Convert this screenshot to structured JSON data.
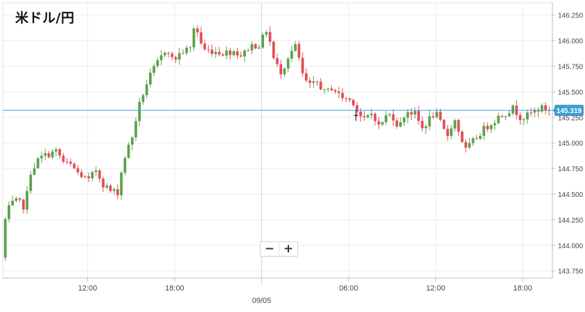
{
  "chart_data": {
    "type": "candlestick",
    "title": "米ドル/円",
    "current_price": 145.319,
    "current_price_label": "145.319",
    "ylim": [
      143.68,
      146.37
    ],
    "y_ticks": [
      "146.250",
      "146.000",
      "145.750",
      "145.500",
      "145.250",
      "145.000",
      "144.750",
      "144.500",
      "144.250",
      "144.000",
      "143.750"
    ],
    "x_ticks": [
      {
        "label": "12:00",
        "hour": 12
      },
      {
        "label": "18:00",
        "hour": 18
      },
      {
        "label": "",
        "hour": 24,
        "sublabel": "09/05"
      },
      {
        "label": "06:00",
        "hour": 30
      },
      {
        "label": "12:00",
        "hour": 36
      },
      {
        "label": "18:00",
        "hour": 42
      }
    ],
    "x_range_hours": [
      6.15,
      44.05
    ],
    "bar_minutes": 15,
    "colors": {
      "up": "#5aa34a",
      "down": "#e04f56",
      "price_line": "#3d9fd6",
      "grid": "#ececec",
      "axis": "#bdbdbd"
    },
    "anchors": [
      [
        6.2,
        143.88
      ],
      [
        6.45,
        144.25
      ],
      [
        6.8,
        144.4
      ],
      [
        7.3,
        144.43
      ],
      [
        7.8,
        144.37
      ],
      [
        8.2,
        144.72
      ],
      [
        8.8,
        144.85
      ],
      [
        9.4,
        144.89
      ],
      [
        10.0,
        144.92
      ],
      [
        10.5,
        144.8
      ],
      [
        11.0,
        144.78
      ],
      [
        11.5,
        144.7
      ],
      [
        12.2,
        144.63
      ],
      [
        12.7,
        144.74
      ],
      [
        13.2,
        144.6
      ],
      [
        13.7,
        144.53
      ],
      [
        14.2,
        144.52
      ],
      [
        14.6,
        144.83
      ],
      [
        15.2,
        145.06
      ],
      [
        15.6,
        145.33
      ],
      [
        16.1,
        145.55
      ],
      [
        16.6,
        145.7
      ],
      [
        17.2,
        145.84
      ],
      [
        17.6,
        145.94
      ],
      [
        18.0,
        145.8
      ],
      [
        18.6,
        145.89
      ],
      [
        19.2,
        145.92
      ],
      [
        19.5,
        146.17
      ],
      [
        20.1,
        145.91
      ],
      [
        20.8,
        145.9
      ],
      [
        21.5,
        145.88
      ],
      [
        22.2,
        145.9
      ],
      [
        22.8,
        145.85
      ],
      [
        23.3,
        145.95
      ],
      [
        24.0,
        145.96
      ],
      [
        24.5,
        146.12
      ],
      [
        25.0,
        145.79
      ],
      [
        25.5,
        145.69
      ],
      [
        26.0,
        145.86
      ],
      [
        26.5,
        145.95
      ],
      [
        27.0,
        145.63
      ],
      [
        27.5,
        145.55
      ],
      [
        28.0,
        145.6
      ],
      [
        28.5,
        145.48
      ],
      [
        29.0,
        145.55
      ],
      [
        29.5,
        145.46
      ],
      [
        30.0,
        145.43
      ],
      [
        30.5,
        145.4
      ],
      [
        30.8,
        145.28
      ],
      [
        31.2,
        145.22
      ],
      [
        31.8,
        145.3
      ],
      [
        32.2,
        145.16
      ],
      [
        32.7,
        145.26
      ],
      [
        33.1,
        145.28
      ],
      [
        33.6,
        145.15
      ],
      [
        34.1,
        145.32
      ],
      [
        34.7,
        145.28
      ],
      [
        35.2,
        145.14
      ],
      [
        35.6,
        145.22
      ],
      [
        36.1,
        145.3
      ],
      [
        36.5,
        145.18
      ],
      [
        36.9,
        145.06
      ],
      [
        37.4,
        145.24
      ],
      [
        37.8,
        145.08
      ],
      [
        38.2,
        144.93
      ],
      [
        38.8,
        145.03
      ],
      [
        39.4,
        145.13
      ],
      [
        40.0,
        145.2
      ],
      [
        40.5,
        145.26
      ],
      [
        41.0,
        145.3
      ],
      [
        41.5,
        145.34
      ],
      [
        41.9,
        145.26
      ],
      [
        42.3,
        145.25
      ],
      [
        42.8,
        145.3
      ],
      [
        43.3,
        145.34
      ],
      [
        43.8,
        145.33
      ],
      [
        44.05,
        145.319
      ]
    ]
  },
  "controls": {
    "zoom_out_label": "−",
    "zoom_in_label": "+"
  }
}
